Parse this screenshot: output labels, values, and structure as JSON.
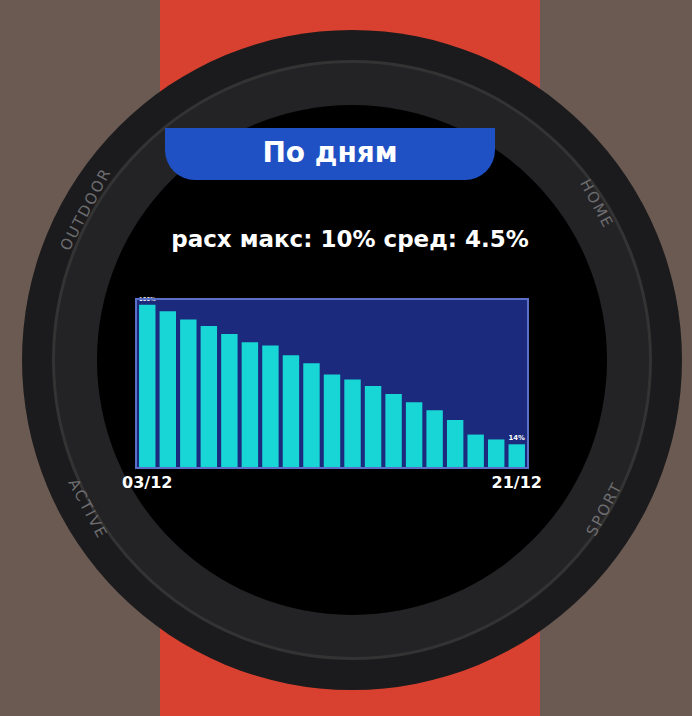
{
  "chart_data": {
    "type": "bar",
    "title": "По дням",
    "subtitle": "расх макс: 10% сред: 4.5%",
    "categories": [
      "03/12",
      null,
      null,
      null,
      null,
      null,
      null,
      null,
      null,
      null,
      null,
      null,
      null,
      null,
      null,
      null,
      null,
      null,
      "21/12"
    ],
    "values": [
      100,
      96,
      91,
      87,
      82,
      77,
      75,
      69,
      64,
      57,
      54,
      50,
      45,
      40,
      35,
      29,
      20,
      17,
      14
    ],
    "value_labels": [
      "100%",
      null,
      null,
      null,
      null,
      null,
      null,
      null,
      null,
      null,
      null,
      null,
      null,
      null,
      null,
      null,
      null,
      null,
      "14%"
    ],
    "data_labels": true,
    "color": "#19d6d6",
    "ylim": [
      0,
      103
    ],
    "tick_labels": "x",
    "grid": false
  },
  "watch": {
    "bezel_labels": {
      "top_left": "OUTDOOR",
      "top_right": "HOME",
      "bottom_left": "ACTIVE",
      "bottom_right": "SPORT"
    }
  }
}
